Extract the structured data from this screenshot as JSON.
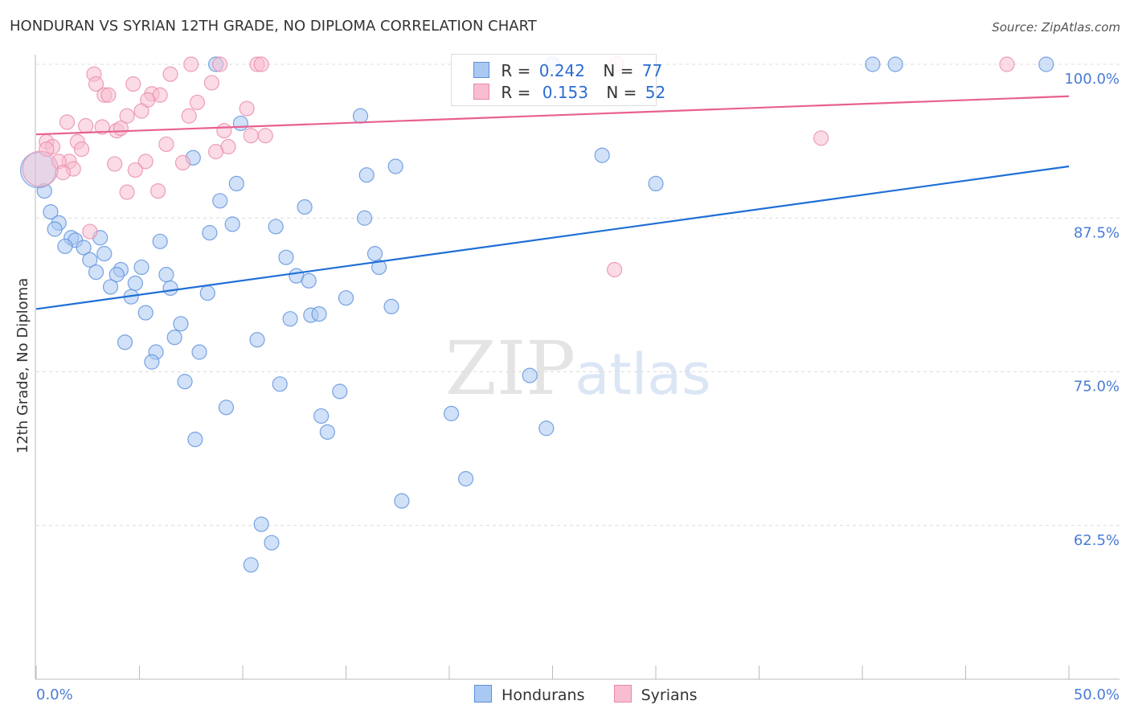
{
  "chart_data": {
    "type": "scatter",
    "title": "HONDURAN VS SYRIAN 12TH GRADE, NO DIPLOMA CORRELATION CHART",
    "source": "Source: ZipAtlas.com",
    "xlabel": "",
    "ylabel": "12th Grade, No Diploma",
    "xlim": [
      0,
      50
    ],
    "ylim": [
      50,
      100
    ],
    "x_tick_labels": [
      "0.0%",
      "50.0%"
    ],
    "y_ticks": [
      100,
      87.5,
      75,
      62.5
    ],
    "y_tick_labels": [
      "100.0%",
      "87.5%",
      "75.0%",
      "62.5%"
    ],
    "grid": true,
    "watermark": "ZIPatlas",
    "legend": {
      "placement": "top-center",
      "entries": [
        {
          "name": "Hondurans",
          "r_label": "R =",
          "r": "0.242",
          "n_label": "N =",
          "n": "77",
          "color": "#5b8fdc"
        },
        {
          "name": "Syrians",
          "r_label": "R =",
          "r": "0.153",
          "n_label": "N =",
          "n": "52",
          "color": "#e88aa8"
        }
      ]
    },
    "series": [
      {
        "name": "Hondurans",
        "color": "#5b8fdc",
        "fill": "#a9c9f2",
        "trend": [
          [
            0,
            80.1
          ],
          [
            50,
            91.7
          ]
        ],
        "trend_color": "#1f6fd6",
        "points": [
          [
            8.7,
            100
          ],
          [
            25.0,
            100
          ],
          [
            40.5,
            100
          ],
          [
            41.6,
            100
          ],
          [
            48.9,
            100
          ],
          [
            15.7,
            95.8
          ],
          [
            9.9,
            95.2
          ],
          [
            7.6,
            92.4
          ],
          [
            27.4,
            92.6
          ],
          [
            17.4,
            91.7
          ],
          [
            16.0,
            91.0
          ],
          [
            30.0,
            90.3
          ],
          [
            9.7,
            90.3
          ],
          [
            0.4,
            89.7
          ],
          [
            8.9,
            88.9
          ],
          [
            13.0,
            88.4
          ],
          [
            0.7,
            88.0
          ],
          [
            1.1,
            87.1
          ],
          [
            15.9,
            87.5
          ],
          [
            9.5,
            87.0
          ],
          [
            0.9,
            86.6
          ],
          [
            11.6,
            86.8
          ],
          [
            8.4,
            86.3
          ],
          [
            1.7,
            85.9
          ],
          [
            3.1,
            85.9
          ],
          [
            1.9,
            85.7
          ],
          [
            6.0,
            85.6
          ],
          [
            1.4,
            85.2
          ],
          [
            2.3,
            85.1
          ],
          [
            3.3,
            84.6
          ],
          [
            12.1,
            84.3
          ],
          [
            16.4,
            84.6
          ],
          [
            2.6,
            84.1
          ],
          [
            16.6,
            83.5
          ],
          [
            4.1,
            83.3
          ],
          [
            5.1,
            83.5
          ],
          [
            2.9,
            83.1
          ],
          [
            3.9,
            82.9
          ],
          [
            6.3,
            82.9
          ],
          [
            12.6,
            82.8
          ],
          [
            13.2,
            82.4
          ],
          [
            4.8,
            82.2
          ],
          [
            3.6,
            81.9
          ],
          [
            6.5,
            81.8
          ],
          [
            8.3,
            81.4
          ],
          [
            4.6,
            81.1
          ],
          [
            15.0,
            81.0
          ],
          [
            17.2,
            80.3
          ],
          [
            5.3,
            79.8
          ],
          [
            12.3,
            79.3
          ],
          [
            13.3,
            79.6
          ],
          [
            13.7,
            79.7
          ],
          [
            7.0,
            78.9
          ],
          [
            6.7,
            77.8
          ],
          [
            10.7,
            77.6
          ],
          [
            4.3,
            77.4
          ],
          [
            5.8,
            76.6
          ],
          [
            7.9,
            76.6
          ],
          [
            5.6,
            75.8
          ],
          [
            23.9,
            74.7
          ],
          [
            7.2,
            74.2
          ],
          [
            11.8,
            74.0
          ],
          [
            14.7,
            73.4
          ],
          [
            9.2,
            72.1
          ],
          [
            20.1,
            71.6
          ],
          [
            13.8,
            71.4
          ],
          [
            24.7,
            70.4
          ],
          [
            14.1,
            70.1
          ],
          [
            7.7,
            69.5
          ],
          [
            20.8,
            66.3
          ],
          [
            17.7,
            64.5
          ],
          [
            10.9,
            62.6
          ],
          [
            11.4,
            61.1
          ],
          [
            10.4,
            59.3
          ]
        ],
        "big_points": [
          [
            0.1,
            91.4
          ]
        ]
      },
      {
        "name": "Syrians",
        "color": "#e88aa8",
        "fill": "#f8bdd0",
        "trend": [
          [
            0,
            94.3
          ],
          [
            50,
            97.4
          ]
        ],
        "trend_color": "#e8608f",
        "points": [
          [
            7.5,
            100
          ],
          [
            8.9,
            100
          ],
          [
            10.7,
            100
          ],
          [
            10.9,
            100
          ],
          [
            28.1,
            100
          ],
          [
            47.0,
            100
          ],
          [
            2.8,
            99.2
          ],
          [
            6.5,
            99.2
          ],
          [
            2.9,
            98.4
          ],
          [
            4.7,
            98.4
          ],
          [
            8.5,
            98.5
          ],
          [
            3.3,
            97.5
          ],
          [
            3.5,
            97.5
          ],
          [
            5.6,
            97.6
          ],
          [
            6.0,
            97.5
          ],
          [
            5.4,
            97.1
          ],
          [
            7.8,
            96.9
          ],
          [
            10.2,
            96.4
          ],
          [
            5.1,
            96.2
          ],
          [
            4.4,
            95.8
          ],
          [
            7.4,
            95.8
          ],
          [
            1.5,
            95.3
          ],
          [
            2.4,
            95.0
          ],
          [
            3.2,
            94.9
          ],
          [
            3.9,
            94.6
          ],
          [
            4.1,
            94.8
          ],
          [
            9.1,
            94.6
          ],
          [
            10.4,
            94.2
          ],
          [
            11.1,
            94.2
          ],
          [
            38.0,
            94.0
          ],
          [
            0.5,
            93.7
          ],
          [
            2.0,
            93.7
          ],
          [
            0.8,
            93.3
          ],
          [
            0.5,
            93.1
          ],
          [
            2.2,
            93.1
          ],
          [
            6.3,
            93.5
          ],
          [
            9.3,
            93.3
          ],
          [
            8.7,
            92.9
          ],
          [
            1.6,
            92.1
          ],
          [
            3.8,
            91.9
          ],
          [
            5.3,
            92.1
          ],
          [
            7.1,
            92.0
          ],
          [
            1.1,
            92.1
          ],
          [
            1.8,
            91.5
          ],
          [
            4.8,
            91.4
          ],
          [
            1.3,
            91.2
          ],
          [
            4.4,
            89.6
          ],
          [
            5.9,
            89.7
          ],
          [
            2.6,
            86.4
          ],
          [
            28.0,
            83.3
          ]
        ],
        "big_points": [
          [
            0.2,
            91.5
          ]
        ]
      }
    ]
  }
}
